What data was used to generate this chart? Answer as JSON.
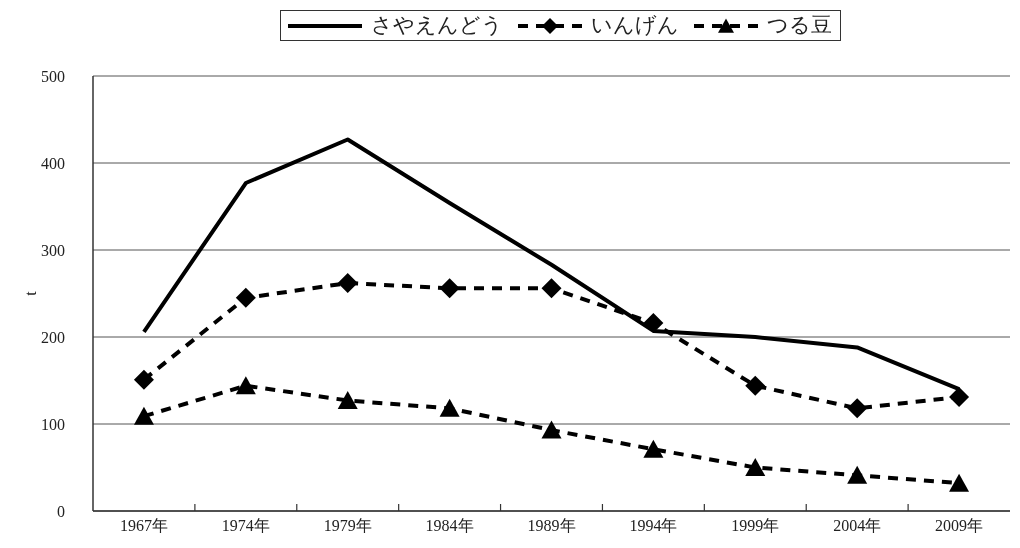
{
  "chart_data": {
    "type": "line",
    "ylabel": "t",
    "categories": [
      "1967年",
      "1974年",
      "1979年",
      "1984年",
      "1989年",
      "1994年",
      "1999年",
      "2004年",
      "2009年"
    ],
    "ylim": [
      0,
      500
    ],
    "yticks": [
      0,
      100,
      200,
      300,
      400,
      500
    ],
    "grid": "y",
    "legend": "top",
    "series": [
      {
        "name": "さやえんどう",
        "color": "#000000",
        "marker": "none",
        "line_style": "solid",
        "values": [
          206,
          377,
          427,
          354,
          283,
          207,
          200,
          188,
          140
        ]
      },
      {
        "name": "いんげん",
        "color": "#000000",
        "marker": "diamond",
        "line_style": "dashed",
        "values": [
          151,
          245,
          262,
          256,
          256,
          216,
          144,
          118,
          131
        ]
      },
      {
        "name": "つる豆",
        "color": "#000000",
        "marker": "triangle",
        "line_style": "dashed",
        "values": [
          109,
          144,
          127,
          118,
          93,
          71,
          50,
          41,
          32
        ]
      }
    ]
  }
}
